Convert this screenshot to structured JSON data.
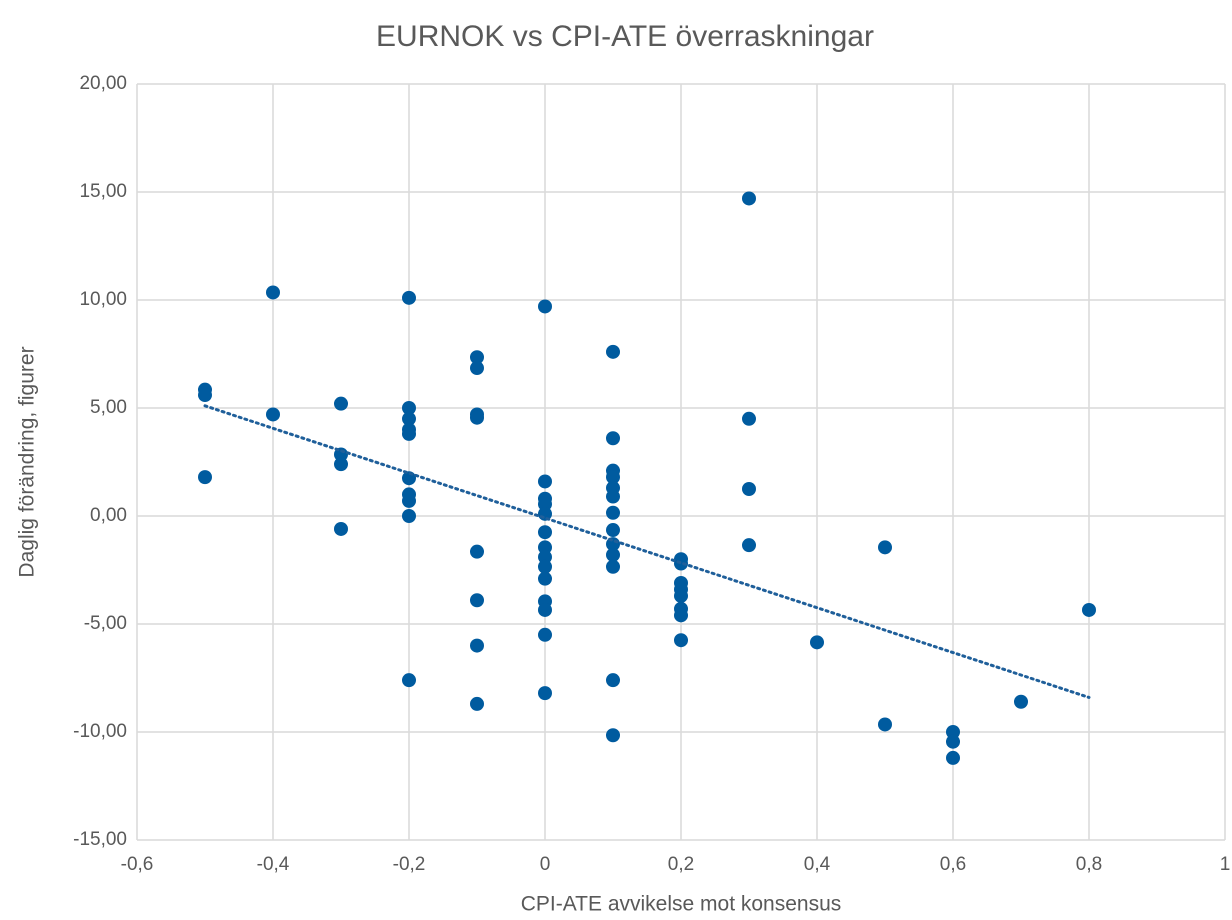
{
  "chart_data": {
    "type": "scatter",
    "title": "EURNOK vs CPI-ATE överraskningar",
    "x_label": "CPI-ATE avvikelse mot konsensus",
    "y_label": "Daglig förändring, figurer",
    "xlim": [
      -0.6,
      1
    ],
    "ylim": [
      -15,
      20
    ],
    "xticks": [
      {
        "value": -0.6,
        "label": "-0,6"
      },
      {
        "value": -0.4,
        "label": "-0,4"
      },
      {
        "value": -0.2,
        "label": "-0,2"
      },
      0,
      {
        "value": 0.2,
        "label": "0,2"
      },
      {
        "value": 0.4,
        "label": "0,4"
      },
      {
        "value": 0.6,
        "label": "0,6"
      },
      {
        "value": 0.8,
        "label": "0,8"
      },
      1
    ],
    "yticks": [
      {
        "value": -15,
        "label": "-15,00"
      },
      {
        "value": -10,
        "label": "-10,00"
      },
      {
        "value": -5,
        "label": "-5,00"
      },
      {
        "value": 0,
        "label": "0,00"
      },
      {
        "value": 5,
        "label": "5,00"
      },
      {
        "value": 10,
        "label": "10,00"
      },
      {
        "value": 15,
        "label": "15,00"
      },
      {
        "value": 20,
        "label": "20,00"
      }
    ],
    "grid": true,
    "series": [
      {
        "color": "#005b9f",
        "x": [
          -0.5,
          -0.5,
          -0.5,
          -0.4,
          -0.4,
          -0.3,
          -0.3,
          -0.3,
          -0.3,
          -0.2,
          -0.2,
          -0.2,
          -0.2,
          -0.2,
          -0.2,
          -0.2,
          -0.2,
          -0.2,
          -0.2,
          -0.1,
          -0.1,
          -0.1,
          -0.1,
          -0.1,
          -0.1,
          -0.1,
          -0.1,
          0,
          0,
          0,
          0,
          0,
          0,
          0,
          0,
          0,
          0,
          0,
          0,
          0,
          0,
          0.1,
          0.1,
          0.1,
          0.1,
          0.1,
          0.1,
          0.1,
          0.1,
          0.1,
          0.1,
          0.1,
          0.1,
          0.1,
          0.2,
          0.2,
          0.2,
          0.2,
          0.2,
          0.2,
          0.2,
          0.2,
          0.3,
          0.3,
          0.3,
          0.3,
          0.4,
          0.5,
          0.5,
          0.6,
          0.6,
          0.6,
          0.7,
          0.8
        ],
        "values": [
          5.85,
          5.6,
          1.8,
          10.35,
          4.7,
          5.2,
          2.85,
          2.4,
          -0.6,
          10.1,
          5.0,
          4.5,
          4.0,
          3.8,
          1.75,
          1.0,
          0.7,
          0.0,
          -7.6,
          7.35,
          6.85,
          4.7,
          4.55,
          -1.65,
          -3.9,
          -6.0,
          -8.7,
          9.7,
          1.6,
          0.8,
          0.55,
          0.1,
          -0.75,
          -1.45,
          -1.9,
          -2.35,
          -2.9,
          -3.95,
          -4.35,
          -5.5,
          -8.2,
          7.6,
          3.6,
          2.1,
          1.8,
          1.3,
          0.9,
          0.15,
          -0.65,
          -1.3,
          -1.8,
          -2.35,
          -7.6,
          -10.15,
          -2.0,
          -2.2,
          -3.1,
          -3.4,
          -3.7,
          -4.3,
          -4.6,
          -5.75,
          14.7,
          4.5,
          1.25,
          -1.35,
          -5.85,
          -1.45,
          -9.65,
          -10.0,
          -10.45,
          -11.2,
          -8.6,
          -4.35
        ]
      }
    ],
    "trendline": {
      "color": "#1f5f9a",
      "x": [
        -0.5,
        0.8
      ],
      "values": [
        5.1,
        -8.4
      ]
    }
  }
}
